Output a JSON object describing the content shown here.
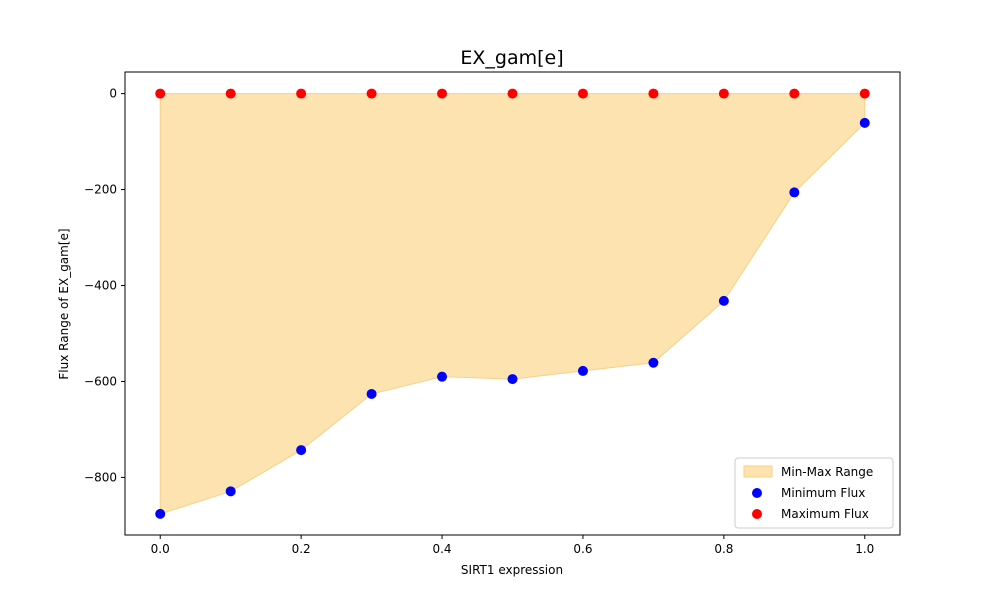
{
  "chart_data": {
    "type": "scatter",
    "title": "EX_gam[e]",
    "xlabel": "SIRT1 expression",
    "ylabel": "Flux Range of EX_gam[e]",
    "xlim": [
      -0.05,
      1.05
    ],
    "ylim": [
      -920,
      45
    ],
    "xticks": [
      0.0,
      0.2,
      0.4,
      0.6,
      0.8,
      1.0
    ],
    "xtick_labels": [
      "0.0",
      "0.2",
      "0.4",
      "0.6",
      "0.8",
      "1.0"
    ],
    "yticks": [
      0,
      -200,
      -400,
      -600,
      -800
    ],
    "ytick_labels": [
      "0",
      "−200",
      "−400",
      "−600",
      "−800"
    ],
    "grid": false,
    "legend_position": "lower-right",
    "x": [
      0.0,
      0.1,
      0.2,
      0.3,
      0.4,
      0.5,
      0.6,
      0.7,
      0.8,
      0.9,
      1.0
    ],
    "series": [
      {
        "name": "Min-Max Range",
        "kind": "fill_between",
        "color": "#fde3b0",
        "edge_color": "#f9cf86"
      },
      {
        "name": "Minimum Flux",
        "kind": "scatter",
        "color": "#0000ff",
        "values": [
          -876,
          -829,
          -743,
          -626,
          -590,
          -595,
          -578,
          -561,
          -432,
          -206,
          -61
        ]
      },
      {
        "name": "Maximum Flux",
        "kind": "scatter",
        "color": "#ff0000",
        "values": [
          0,
          0,
          0,
          0,
          0,
          0,
          0,
          0,
          0,
          0,
          0
        ]
      }
    ]
  }
}
